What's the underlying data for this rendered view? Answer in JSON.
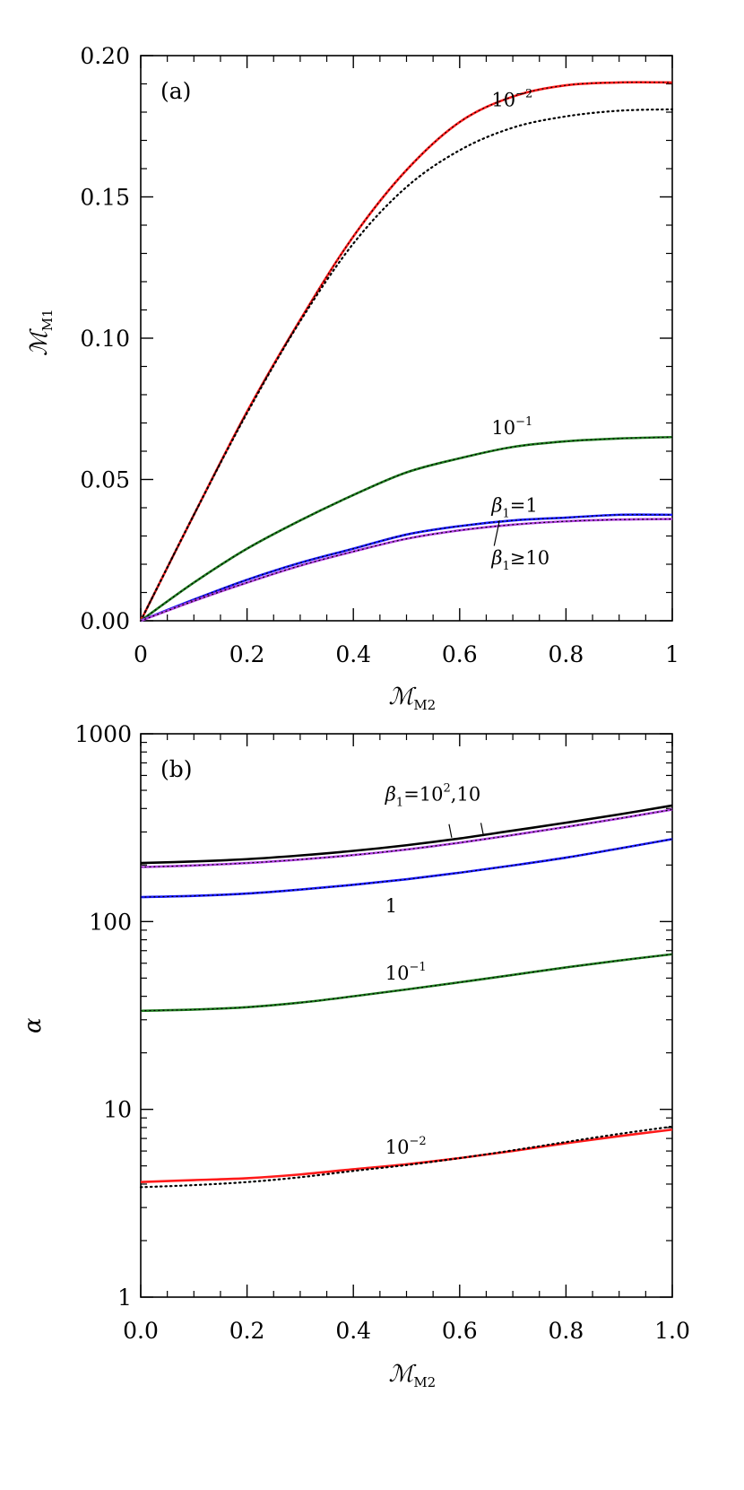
{
  "chart_data": [
    {
      "panel_label": "(a)",
      "type": "line",
      "xlabel": {
        "main": "ℳ",
        "sub": "M2"
      },
      "ylabel": {
        "main": "ℳ",
        "sub": "M1"
      },
      "xlim": [
        0,
        1
      ],
      "ylim": [
        0,
        0.2
      ],
      "x_ticks": [
        "0",
        "0.2",
        "0.4",
        "0.6",
        "0.8",
        "1"
      ],
      "y_ticks": [
        "0.00",
        "0.05",
        "0.10",
        "0.15",
        "0.20"
      ],
      "grid": false,
      "x": [
        0,
        0.1,
        0.2,
        0.3,
        0.4,
        0.5,
        0.6,
        0.7,
        0.8,
        0.9,
        1.0
      ],
      "series": [
        {
          "color": "#ff1a1a",
          "style": "solid",
          "values": [
            0,
            0.0375,
            0.074,
            0.1065,
            0.136,
            0.1595,
            0.1765,
            0.1855,
            0.1895,
            0.1905,
            0.1905
          ]
        },
        {
          "color": "#000000",
          "style": "dotted",
          "values": [
            0,
            0.0375,
            0.0735,
            0.106,
            0.1335,
            0.1535,
            0.1665,
            0.1745,
            0.1785,
            0.1805,
            0.181
          ]
        },
        {
          "color": "#1e7a1e",
          "style": "solid",
          "values": [
            0,
            0.0135,
            0.0255,
            0.0355,
            0.0445,
            0.0525,
            0.0575,
            0.0615,
            0.0635,
            0.0645,
            0.065
          ]
        },
        {
          "color": "#1a1aff",
          "style": "solid",
          "values": [
            0,
            0.0075,
            0.0145,
            0.0205,
            0.0255,
            0.0305,
            0.0335,
            0.0355,
            0.0365,
            0.0375,
            0.0375
          ]
        },
        {
          "color": "#b040e0",
          "style": "solid",
          "values": [
            0,
            0.007,
            0.0135,
            0.0195,
            0.0245,
            0.029,
            0.032,
            0.034,
            0.0352,
            0.0358,
            0.036
          ]
        }
      ],
      "annotations": [
        {
          "text": "10",
          "sup": "−2",
          "x": 0.66,
          "y": 0.182
        },
        {
          "text": "10",
          "sup": "−1",
          "x": 0.66,
          "y": 0.066
        },
        {
          "greek": "β",
          "sub": "1",
          "text": "=1",
          "x": 0.66,
          "y": 0.0385
        },
        {
          "greek": "β",
          "sub": "1",
          "text": "≥10",
          "x": 0.66,
          "y": 0.02
        }
      ]
    },
    {
      "panel_label": "(b)",
      "type": "line",
      "xlabel": {
        "main": "ℳ",
        "sub": "M2"
      },
      "ylabel": {
        "main": "α",
        "sub": ""
      },
      "xlim": [
        0,
        1
      ],
      "ylim": [
        1,
        1000
      ],
      "yscale": "log",
      "x_ticks": [
        "0.0",
        "0.2",
        "0.4",
        "0.6",
        "0.8",
        "1.0"
      ],
      "y_ticks": [
        "1",
        "10",
        "100",
        "1000"
      ],
      "grid": false,
      "x": [
        0,
        0.1,
        0.2,
        0.3,
        0.4,
        0.5,
        0.6,
        0.7,
        0.8,
        0.9,
        1.0
      ],
      "series": [
        {
          "color": "#000000",
          "style": "solid",
          "values": [
            205,
            209,
            215,
            225,
            238,
            255,
            277,
            305,
            336,
            372,
            415
          ]
        },
        {
          "color": "#b040e0",
          "style": "solid",
          "values": [
            195,
            199,
            205,
            214,
            226,
            242,
            263,
            289,
            319,
            354,
            395
          ]
        },
        {
          "color": "#1a1aff",
          "style": "solid",
          "values": [
            135,
            137,
            141,
            148,
            157,
            168,
            182,
            199,
            219,
            245,
            275
          ]
        },
        {
          "color": "#1e7a1e",
          "style": "solid",
          "values": [
            33.5,
            34,
            35,
            37,
            40,
            43.5,
            47.5,
            52,
            57,
            62,
            67
          ]
        },
        {
          "color": "#ff1a1a",
          "style": "solid",
          "values": [
            4.1,
            4.2,
            4.3,
            4.5,
            4.8,
            5.1,
            5.5,
            6.0,
            6.6,
            7.2,
            7.8
          ]
        },
        {
          "color": "#000000",
          "style": "dotted",
          "values": [
            3.85,
            3.95,
            4.1,
            4.35,
            4.7,
            5.05,
            5.5,
            6.05,
            6.7,
            7.4,
            8.1
          ]
        }
      ],
      "annotations": [
        {
          "greek": "β",
          "sub": "1",
          "text": "=10",
          "sup": "2",
          "tail": ",10",
          "x": 0.46,
          "y": 440
        },
        {
          "text": "1",
          "x": 0.46,
          "y": 112
        },
        {
          "text": "10",
          "sup": "−1",
          "x": 0.46,
          "y": 49
        },
        {
          "text": "10",
          "sup": "−2",
          "x": 0.46,
          "y": 5.8
        }
      ]
    }
  ]
}
